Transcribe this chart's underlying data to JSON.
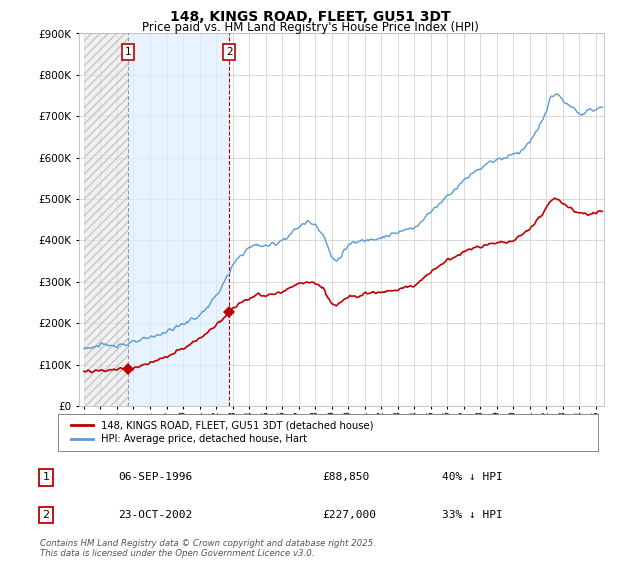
{
  "title": "148, KINGS ROAD, FLEET, GU51 3DT",
  "subtitle": "Price paid vs. HM Land Registry's House Price Index (HPI)",
  "ylim": [
    0,
    900000
  ],
  "xlim_start": 1993.7,
  "xlim_end": 2025.5,
  "hpi_color": "#5b9bd5",
  "price_color": "#c00000",
  "hpi_fill_color": "#ddeeff",
  "annotation_color": "#c00000",
  "sale1_x": 1996.68,
  "sale1_y": 88850,
  "sale2_x": 2002.81,
  "sale2_y": 227000,
  "legend_price": "148, KINGS ROAD, FLEET, GU51 3DT (detached house)",
  "legend_hpi": "HPI: Average price, detached house, Hart",
  "note1_date": "06-SEP-1996",
  "note1_price": "£88,850",
  "note1_hpi": "40% ↓ HPI",
  "note2_date": "23-OCT-2002",
  "note2_price": "£227,000",
  "note2_hpi": "33% ↓ HPI",
  "footer": "Contains HM Land Registry data © Crown copyright and database right 2025.\nThis data is licensed under the Open Government Licence v3.0.",
  "background_color": "#ffffff"
}
